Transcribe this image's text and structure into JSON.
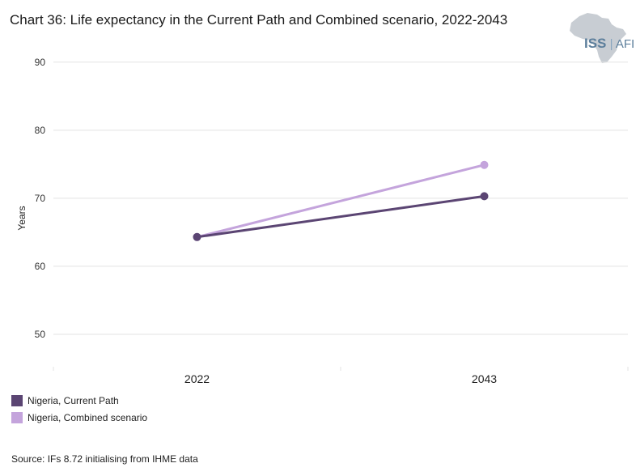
{
  "title": "Chart 36: Life expectancy in the Current Path and Combined scenario, 2022-2043",
  "logo": {
    "name": "ISS",
    "sub": "AFI",
    "map_color": "#c8cdd3",
    "text_color": "#5d7f9c"
  },
  "source": "Source: IFs 8.72 initialising from IHME data",
  "chart_data": {
    "type": "line",
    "x": [
      "2022",
      "2043"
    ],
    "ylabel": "Years",
    "xlabel": "",
    "ylim": [
      45,
      92
    ],
    "yticks": [
      50,
      60,
      70,
      80,
      90
    ],
    "grid": true,
    "legend_position": "bottom-left",
    "series": [
      {
        "name": "Nigeria, Current Path",
        "values": [
          64.3,
          70.3
        ],
        "color": "#5b4573"
      },
      {
        "name": "Nigeria, Combined scenario",
        "values": [
          64.3,
          74.9
        ],
        "color": "#c4a4dc"
      }
    ]
  }
}
